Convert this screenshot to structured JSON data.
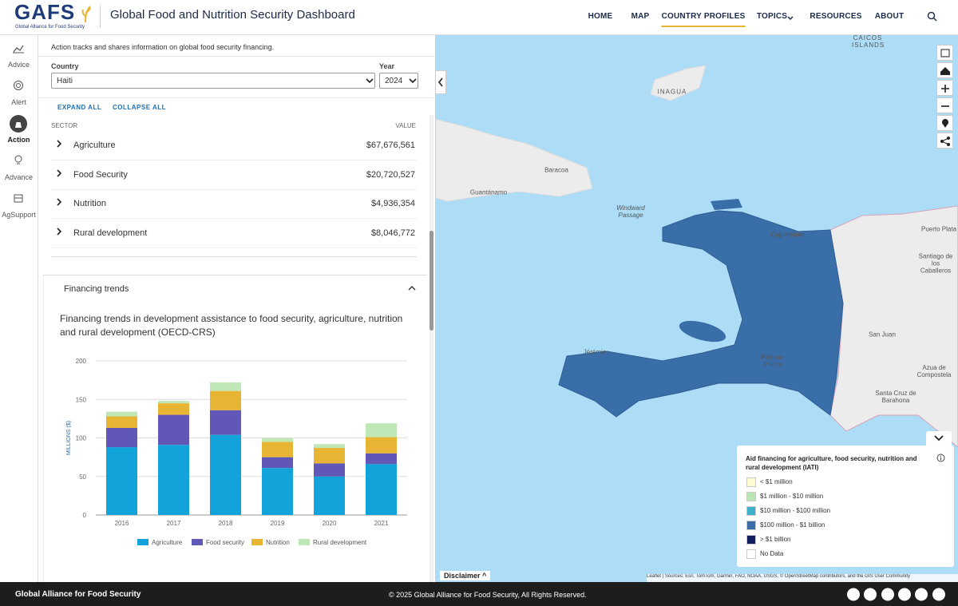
{
  "header": {
    "logo": "GAFS",
    "logo_subtitle": "Global Alliance for Food Security",
    "title": "Global Food and Nutrition Security Dashboard",
    "nav": [
      "HOME",
      "MAP",
      "COUNTRY PROFILES",
      "TOPICS",
      "RESOURCES",
      "ABOUT"
    ]
  },
  "sidebar": [
    "Advice",
    "Alert",
    "Action",
    "Advance",
    "AgSupport"
  ],
  "panel": {
    "intro": "Action tracks and shares information on global food security financing.",
    "country_label": "Country",
    "country": "Haiti",
    "year_label": "Year",
    "year": "2024",
    "expand": "EXPAND ALL",
    "collapse": "COLLAPSE ALL",
    "sector_header": "SECTOR",
    "value_header": "VALUE",
    "sectors": [
      {
        "name": "Agriculture",
        "value": "$67,676,561"
      },
      {
        "name": "Food Security",
        "value": "$20,720,527"
      },
      {
        "name": "Nutrition",
        "value": "$4,936,354"
      },
      {
        "name": "Rural development",
        "value": "$8,046,772"
      }
    ],
    "trends_title": "Financing trends"
  },
  "chart_data": {
    "type": "stacked-bar",
    "title": "Financing trends in development assistance to food security, agriculture, nutrition and rural development (OECD-CRS)",
    "y_label": "MILLIONS ($)",
    "categories": [
      "2016",
      "2017",
      "2018",
      "2019",
      "2020",
      "2021"
    ],
    "series": [
      {
        "name": "Agriculture",
        "color": "#12a3da",
        "values": [
          88,
          91,
          104,
          61,
          50,
          66
        ]
      },
      {
        "name": "Food security",
        "color": "#6157b7",
        "values": [
          25,
          39,
          32,
          14,
          17,
          14
        ]
      },
      {
        "name": "Nutrition",
        "color": "#e8b434",
        "values": [
          15,
          15,
          25,
          20,
          20,
          21
        ]
      },
      {
        "name": "Rural development",
        "color": "#bfe8b6",
        "values": [
          6,
          3,
          11,
          5,
          5,
          18
        ]
      }
    ],
    "ylim": [
      0,
      200
    ],
    "yticks": [
      0,
      50,
      100,
      150,
      200
    ],
    "grid": true
  },
  "map": {
    "labels": [
      "CAICOS ISLANDS",
      "INAGUA",
      "Baracoa",
      "Guantánamo",
      "Windward Passage",
      "Cap-Haïtien",
      "Port-au-Prince",
      "Jérémie",
      "Puerto Plata",
      "Santiago de los Caballeros",
      "San Juan",
      "Azua de Compostela",
      "Santa Cruz de Barahona"
    ],
    "legend": {
      "title": "Aid financing for agriculture, food security, nutrition and rural development (IATI)",
      "items": [
        {
          "label": "< $1 million",
          "color": "#fffbd0"
        },
        {
          "label": "$1 million - $10 million",
          "color": "#b8e6b2"
        },
        {
          "label": "$10 million - $100 million",
          "color": "#3fb0c9"
        },
        {
          "label": "$100 million - $1 billion",
          "color": "#3a6ea8"
        },
        {
          "label": "> $1 billion",
          "color": "#10205e"
        },
        {
          "label": "No Data",
          "color": "#ffffff"
        }
      ]
    },
    "disclaimer": "Disclaimer",
    "attribution": "Leaflet | Sources: Esri, TomTom, Garmin, FAO, NOAA, USGS, © OpenStreetMap contributors, and the GIS User Community"
  },
  "footer": {
    "org": "Global Alliance for Food Security",
    "copyright": "© 2025 Global Alliance for Food Security, All Rights Reserved."
  }
}
